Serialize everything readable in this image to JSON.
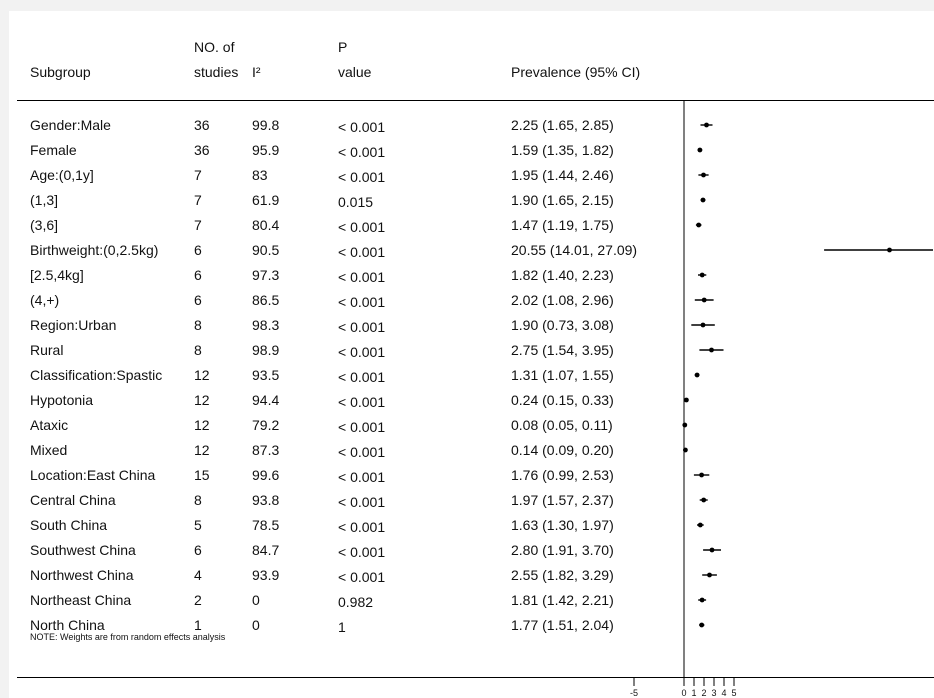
{
  "headers": {
    "subgroup": "Subgroup",
    "no_of_line1": "NO. of",
    "no_of_line2": "studies",
    "i2": "I²",
    "p_line1": "P",
    "p_line2": "value",
    "prevalence": "Prevalence (95% CI)"
  },
  "rows": [
    {
      "label": "Gender:Male",
      "studies": "36",
      "i2": "99.8",
      "p": "< 0.001",
      "ci": "2.25 (1.65, 2.85)"
    },
    {
      "label": "Female",
      "studies": "36",
      "i2": "95.9",
      "p": "< 0.001",
      "ci": "1.59 (1.35, 1.82)"
    },
    {
      "label": "Age:(0,1y]",
      "studies": "7",
      "i2": "83",
      "p": "< 0.001",
      "ci": "1.95 (1.44, 2.46)"
    },
    {
      "label": "(1,3]",
      "studies": "7",
      "i2": "61.9",
      "p": "0.015",
      "ci": "1.90 (1.65, 2.15)"
    },
    {
      "label": "(3,6]",
      "studies": "7",
      "i2": "80.4",
      "p": "< 0.001",
      "ci": "1.47 (1.19, 1.75)"
    },
    {
      "label": "Birthweight:(0,2.5kg)",
      "studies": "6",
      "i2": "90.5",
      "p": "< 0.001",
      "ci": "20.55 (14.01, 27.09)"
    },
    {
      "label": "[2.5,4kg]",
      "studies": "6",
      "i2": "97.3",
      "p": "< 0.001",
      "ci": "1.82 (1.40, 2.23)"
    },
    {
      "label": "(4,+)",
      "studies": "6",
      "i2": "86.5",
      "p": "< 0.001",
      "ci": "2.02 (1.08, 2.96)"
    },
    {
      "label": "Region:Urban",
      "studies": "8",
      "i2": "98.3",
      "p": "< 0.001",
      "ci": "1.90 (0.73, 3.08)"
    },
    {
      "label": "Rural",
      "studies": "8",
      "i2": "98.9",
      "p": "< 0.001",
      "ci": "2.75 (1.54, 3.95)"
    },
    {
      "label": "Classification:Spastic",
      "studies": "12",
      "i2": "93.5",
      "p": "< 0.001",
      "ci": "1.31 (1.07, 1.55)"
    },
    {
      "label": "Hypotonia",
      "studies": "12",
      "i2": "94.4",
      "p": "< 0.001",
      "ci": "0.24 (0.15, 0.33)"
    },
    {
      "label": "Ataxic",
      "studies": "12",
      "i2": "79.2",
      "p": "< 0.001",
      "ci": "0.08 (0.05, 0.11)"
    },
    {
      "label": "Mixed",
      "studies": "12",
      "i2": "87.3",
      "p": "< 0.001",
      "ci": "0.14 (0.09, 0.20)"
    },
    {
      "label": "Location:East China",
      "studies": "15",
      "i2": "99.6",
      "p": "< 0.001",
      "ci": "1.76 (0.99, 2.53)"
    },
    {
      "label": "Central China",
      "studies": "8",
      "i2": "93.8",
      "p": "< 0.001",
      "ci": "1.97 (1.57, 2.37)"
    },
    {
      "label": "South China",
      "studies": "5",
      "i2": "78.5",
      "p": "< 0.001",
      "ci": "1.63 (1.30, 1.97)"
    },
    {
      "label": "Southwest China",
      "studies": "6",
      "i2": "84.7",
      "p": "< 0.001",
      "ci": "2.80 (1.91, 3.70)"
    },
    {
      "label": "Northwest China",
      "studies": "4",
      "i2": "93.9",
      "p": "< 0.001",
      "ci": "2.55 (1.82, 3.29)"
    },
    {
      "label": "Northeast China",
      "studies": "2",
      "i2": "0",
      "p": "0.982",
      "ci": "1.81 (1.42, 2.21)"
    },
    {
      "label": "North China",
      "studies": "1",
      "i2": "0",
      "p": "1",
      "ci": "1.77 (1.51, 2.04)"
    }
  ],
  "note": "NOTE: Weights are from random effects analysis",
  "chart_data": {
    "type": "scatter",
    "title": "",
    "xlabel": "",
    "ylabel": "",
    "categories": [
      "Gender:Male",
      "Female",
      "Age:(0,1y]",
      "(1,3]",
      "(3,6]",
      "Birthweight:(0,2.5kg)",
      "[2.5,4kg]",
      "(4,+)",
      "Region:Urban",
      "Rural",
      "Classification:Spastic",
      "Hypotonia",
      "Ataxic",
      "Mixed",
      "Location:East China",
      "Central China",
      "South China",
      "Southwest China",
      "Northwest China",
      "Northeast China",
      "North China"
    ],
    "estimate": [
      2.25,
      1.59,
      1.95,
      1.9,
      1.47,
      20.55,
      1.82,
      2.02,
      1.9,
      2.75,
      1.31,
      0.24,
      0.08,
      0.14,
      1.76,
      1.97,
      1.63,
      2.8,
      2.55,
      1.81,
      1.77
    ],
    "ci_lower": [
      1.65,
      1.35,
      1.44,
      1.65,
      1.19,
      14.01,
      1.4,
      1.08,
      0.73,
      1.54,
      1.07,
      0.15,
      0.05,
      0.09,
      0.99,
      1.57,
      1.3,
      1.91,
      1.82,
      1.42,
      1.51
    ],
    "ci_upper": [
      2.85,
      1.82,
      2.46,
      2.15,
      1.75,
      27.09,
      2.23,
      2.96,
      3.08,
      3.95,
      1.55,
      0.33,
      0.11,
      0.2,
      2.53,
      2.37,
      1.97,
      3.7,
      3.29,
      2.21,
      2.04
    ],
    "reference_line": 0,
    "x_ticks": [
      "-5",
      "0",
      "1",
      "2",
      "3",
      "4",
      "5"
    ]
  }
}
